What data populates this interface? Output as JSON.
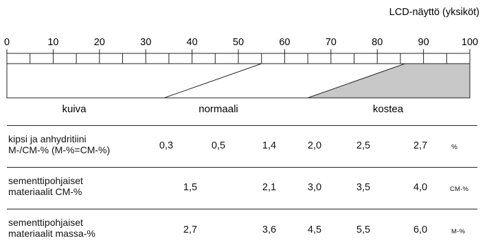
{
  "scale": {
    "title": "LCD-näyttö (yksiköt)",
    "min": 0,
    "max": 100,
    "major_ticks": [
      0,
      10,
      20,
      30,
      40,
      50,
      60,
      70,
      80,
      90,
      100
    ],
    "minor_ticks": [
      5,
      15,
      25,
      35,
      45,
      55,
      65,
      75,
      85,
      95
    ],
    "zones": [
      {
        "label": "kuiva"
      },
      {
        "label": "normaali",
        "ramp_start": 34,
        "ramp_end": 55
      },
      {
        "label": "kostea",
        "ramp_start": 65,
        "ramp_end": 86,
        "fill": "#c8c8c8"
      }
    ]
  },
  "table": {
    "rows": [
      {
        "label_line1": "kipsi ja anhydritiini",
        "label_line2": "M-/CM-% (M-%=CM-%)",
        "values": [
          "0,3",
          "0,5",
          "1,4",
          "2,0",
          "2,5",
          "2,7"
        ],
        "unit": "%"
      },
      {
        "label_line1": "sementtipohjaiset",
        "label_line2": "materiaalit CM-%",
        "values": [
          "1,5",
          "2,1",
          "3,0",
          "3,5",
          "4,0"
        ],
        "unit": "CM-%"
      },
      {
        "label_line1": "sementtipohjaiset",
        "label_line2": "materiaalit massa-%",
        "values": [
          "2,7",
          "3,6",
          "4,5",
          "5,5",
          "6,0"
        ],
        "unit": "M-%"
      }
    ]
  }
}
